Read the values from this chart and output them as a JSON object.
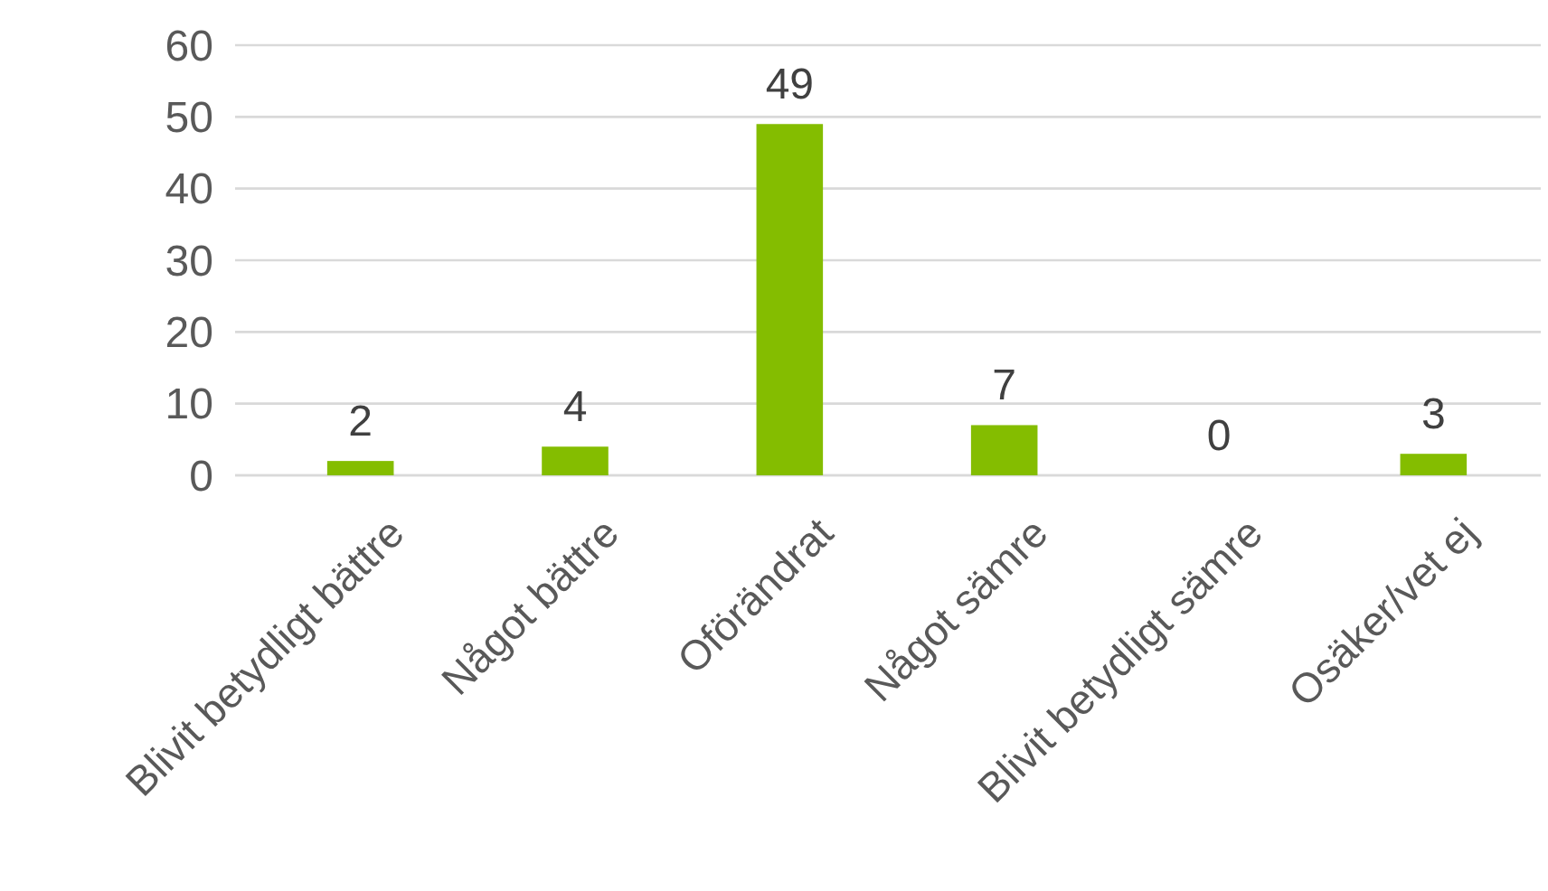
{
  "chart_data": {
    "type": "bar",
    "categories": [
      "Blivit betydligt bättre",
      "Något bättre",
      "Oförändrat",
      "Något sämre",
      "Blivit betydligt sämre",
      "Osäker/vet ej"
    ],
    "values": [
      2,
      4,
      49,
      7,
      0,
      3
    ],
    "color": "#84bd00",
    "ylim": [
      0,
      60
    ],
    "yticks": [
      0,
      10,
      20,
      30,
      40,
      50,
      60
    ],
    "grid": "y",
    "data_labels": true
  }
}
